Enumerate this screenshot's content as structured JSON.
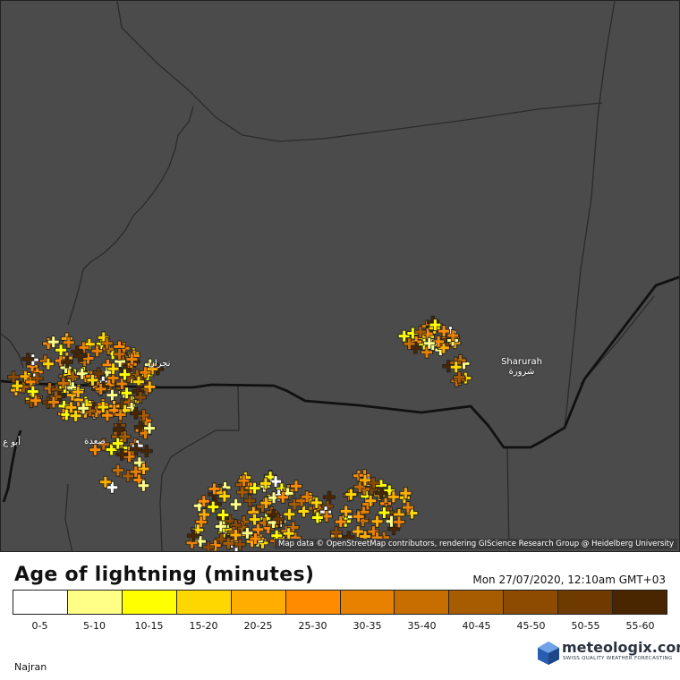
{
  "map": {
    "places": [
      {
        "name": "Sharurah",
        "native": "شرورة"
      },
      {
        "name": "",
        "native": "صعدة"
      },
      {
        "name": "",
        "native": "نجران"
      },
      {
        "name": "",
        "native": "أبو ع"
      }
    ],
    "attribution": "Map data © OpenStreetMap contributors, rendering GIScience Research Group @ Heidelberg University"
  },
  "legend": {
    "title": "Age of lightning (minutes)",
    "timestamp": "Mon 27/07/2020, 12:10am GMT+03",
    "classes": [
      {
        "label": "0-5",
        "color": "#ffffff"
      },
      {
        "label": "5-10",
        "color": "#ffff88"
      },
      {
        "label": "10-15",
        "color": "#ffff00"
      },
      {
        "label": "15-20",
        "color": "#ffd700"
      },
      {
        "label": "20-25",
        "color": "#ffae00"
      },
      {
        "label": "25-30",
        "color": "#ff8c00"
      },
      {
        "label": "30-35",
        "color": "#e88000"
      },
      {
        "label": "35-40",
        "color": "#c86e00"
      },
      {
        "label": "40-45",
        "color": "#a85c00"
      },
      {
        "label": "45-50",
        "color": "#8c4b00"
      },
      {
        "label": "50-55",
        "color": "#6e3a00"
      },
      {
        "label": "55-60",
        "color": "#4a2600"
      }
    ]
  },
  "region": "Najran",
  "brand": {
    "name": "meteologix.com",
    "tagline": "SWISS QUALITY WEATHER FORECASTING",
    "color": "#2a3440"
  }
}
